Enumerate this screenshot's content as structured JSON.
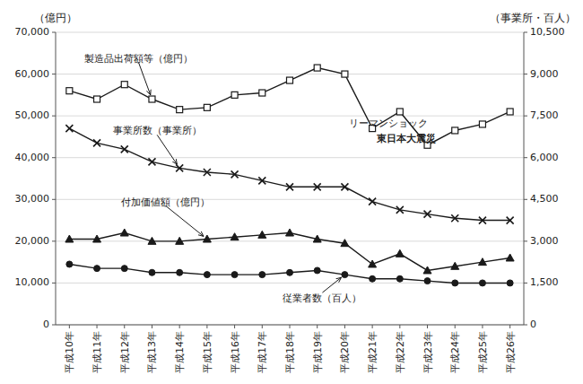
{
  "chart_data": {
    "type": "line",
    "ylabel": "（億円）",
    "y2label": "（事業所・百人）",
    "categories": [
      "平成10年",
      "平成11年",
      "平成12年",
      "平成13年",
      "平成14年",
      "平成15年",
      "平成16年",
      "平成17年",
      "平成18年",
      "平成19年",
      "平成20年",
      "平成21年",
      "平成22年",
      "平成23年",
      "平成24年",
      "平成25年",
      "平成26年"
    ],
    "series": [
      {
        "name": "製造品出荷額等（億円）",
        "color": "#1a1a1a",
        "marker": "square",
        "values": [
          56000,
          54000,
          57500,
          54000,
          51500,
          52000,
          55000,
          55500,
          58500,
          61500,
          60000,
          47000,
          51000,
          43000,
          46500,
          48000,
          51000
        ]
      },
      {
        "name": "事業所数（事業所）",
        "color": "#1a1a1a",
        "marker": "x",
        "values": [
          47000,
          43500,
          42000,
          39000,
          37500,
          36500,
          36000,
          34500,
          33000,
          33000,
          33000,
          29500,
          27500,
          26500,
          25500,
          25000,
          25000
        ]
      },
      {
        "name": "付加価値額（億円）",
        "color": "#1a1a1a",
        "marker": "triangle",
        "values": [
          20500,
          20500,
          22000,
          20000,
          20000,
          20500,
          21000,
          21500,
          22000,
          20500,
          19500,
          14500,
          17000,
          13000,
          14000,
          15000,
          16000
        ]
      },
      {
        "name": "従業者数（百人）",
        "color": "#1a1a1a",
        "marker": "circle",
        "values": [
          14500,
          13500,
          13500,
          12500,
          12500,
          12000,
          12000,
          12000,
          12500,
          13000,
          12000,
          11000,
          11000,
          10500,
          10000,
          10000,
          10000
        ]
      }
    ],
    "ylim": [
      0,
      70000
    ],
    "yticks": [
      0,
      {
        "value": 10000,
        "label": "10,000"
      },
      {
        "value": 20000,
        "label": "20,000"
      },
      {
        "value": 30000,
        "label": "30,000"
      },
      {
        "value": 40000,
        "label": "40,000"
      },
      {
        "value": 50000,
        "label": "50,000"
      },
      {
        "value": 60000,
        "label": "60,000"
      },
      {
        "value": 70000,
        "label": "70,000"
      }
    ],
    "y2lim": [
      0,
      10500
    ],
    "y2ticks": [
      0,
      {
        "value": 1500,
        "label": "1,500"
      },
      {
        "value": 3000,
        "label": "3,000"
      },
      {
        "value": 4500,
        "label": "4,500"
      },
      {
        "value": 6000,
        "label": "6,000"
      },
      {
        "value": 7500,
        "label": "7,500"
      },
      {
        "value": 9000,
        "label": "9,000"
      },
      {
        "value": 10500,
        "label": "10,500"
      }
    ],
    "grid": true,
    "annotations": [
      {
        "text": "リーマンショック",
        "x": "平成20年",
        "y": 48000
      },
      {
        "text": "東日本大震災",
        "x": "平成21年",
        "y": 44500
      }
    ]
  }
}
